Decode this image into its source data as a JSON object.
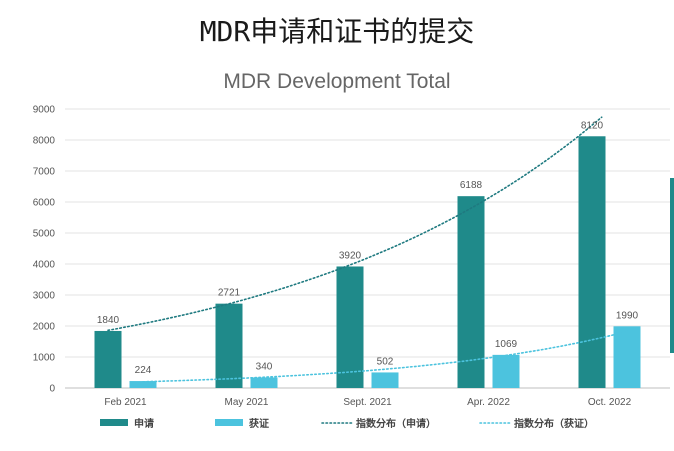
{
  "page_title": "MDR申请和证书的提交",
  "chart_data": {
    "type": "bar",
    "title": "MDR Development Total",
    "categories": [
      "Feb 2021",
      "May 2021",
      "Sept. 2021",
      "Apr. 2022",
      "Oct. 2022"
    ],
    "series": [
      {
        "name": "申请",
        "values": [
          1840,
          2721,
          3920,
          6188,
          8120
        ],
        "color": "#1f8a8a"
      },
      {
        "name": "获证",
        "values": [
          224,
          340,
          502,
          1069,
          1990
        ],
        "color": "#4cc3de"
      }
    ],
    "trendlines": [
      {
        "name": "指数分布（申请）",
        "of": "申请",
        "type": "exponential",
        "style": "dotted",
        "color": "#1f7a80"
      },
      {
        "name": "指数分布（获证）",
        "of": "获证",
        "type": "exponential",
        "style": "dotted",
        "color": "#4cc3de"
      }
    ],
    "ylim": [
      0,
      9000
    ],
    "yticks": [
      0,
      1000,
      2000,
      3000,
      4000,
      5000,
      6000,
      7000,
      8000,
      9000
    ],
    "grid": true,
    "legend_position": "bottom"
  }
}
